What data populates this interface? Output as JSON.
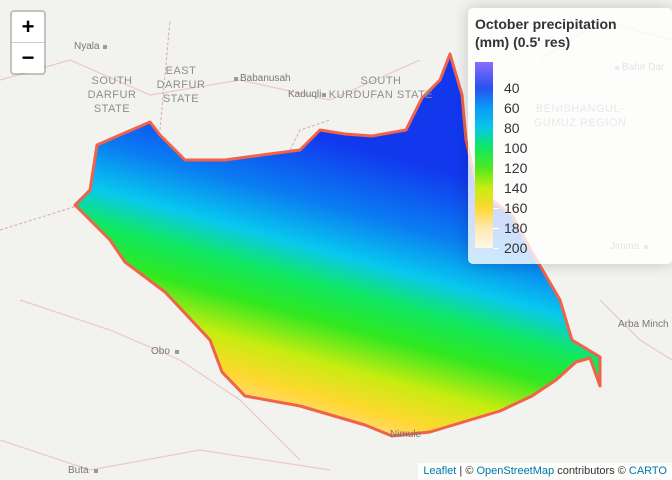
{
  "zoom": {
    "in": "+",
    "out": "−"
  },
  "legend": {
    "title": "October precipitation (mm) (0.5' res)",
    "ticks": [
      40,
      60,
      80,
      100,
      120,
      140,
      160,
      180,
      200
    ]
  },
  "places": [
    {
      "label": "Nyala"
    },
    {
      "label": "SOUTH DARFUR STATE"
    },
    {
      "label": "EAST DARFUR STATE"
    },
    {
      "label": "Babanusah"
    },
    {
      "label": "Kaduqli"
    },
    {
      "label": "SOUTH KURDUFAN STATE"
    },
    {
      "label": "BENISHANGUL-GUMUZ REGION"
    },
    {
      "label": "Bahir Dar"
    },
    {
      "label": "Obo"
    },
    {
      "label": "Nimule"
    },
    {
      "label": "Buta"
    },
    {
      "label": "Arba Minch"
    },
    {
      "label": "Jimma"
    }
  ],
  "attribution": {
    "leaflet": "Leaflet",
    "sep1": " | © ",
    "osm": "OpenStreetMap",
    "sep2": " contributors © ",
    "carto": "CARTO"
  }
}
